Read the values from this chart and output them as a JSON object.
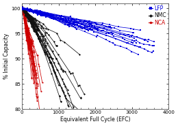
{
  "title": "",
  "xlabel": "Equivalent Full Cycle (EFC)",
  "ylabel": "% Initial Capacity",
  "xlim": [
    0,
    4000
  ],
  "ylim": [
    80,
    101
  ],
  "yticks": [
    80,
    85,
    90,
    95,
    100
  ],
  "xticks": [
    0,
    1000,
    2000,
    3000,
    4000
  ],
  "legend_labels": [
    "LFP",
    "NMC",
    "NCA"
  ],
  "legend_colors": [
    "#0000dd",
    "#111111",
    "#cc0000"
  ],
  "background_color": "#ffffff",
  "lfp_color": "#0000dd",
  "nmc_color": "#111111",
  "nca_color": "#cc0000",
  "n_lfp": 20,
  "n_nmc": 25,
  "n_nca": 22,
  "seed": 7
}
